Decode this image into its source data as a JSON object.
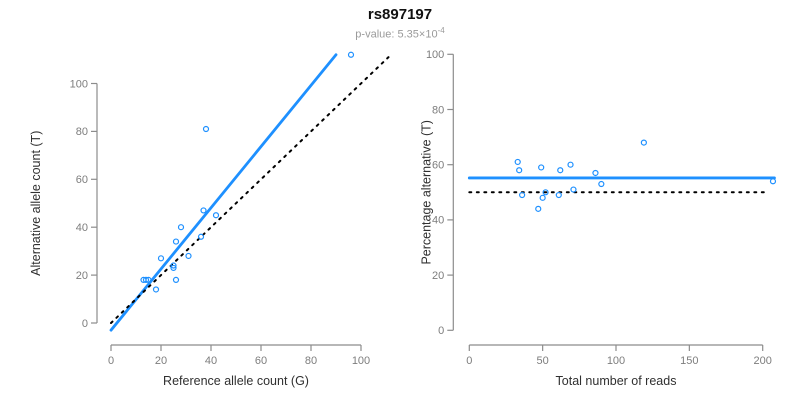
{
  "header": {
    "title": "rs897197",
    "pvalue_label": "p-value: 5.35×10",
    "pvalue_exponent": "-4"
  },
  "colors": {
    "accent_blue": "#1E90FF",
    "axis_gray": "#8c8c8c",
    "tick_label_gray": "#7d7d7d",
    "axis_title_dark": "#303030",
    "dotted_black": "#000000"
  },
  "chart_data": [
    {
      "type": "scatter",
      "name": "allele-counts-scatter",
      "xlabel": "Reference allele count (G)",
      "ylabel": "Alternative allele count (T)",
      "x_ticks": [
        0,
        20,
        40,
        60,
        80,
        100
      ],
      "y_ticks": [
        0,
        20,
        40,
        60,
        80,
        100
      ],
      "xlim": [
        0,
        112
      ],
      "ylim": [
        0,
        113
      ],
      "grid": false,
      "points": [
        [
          13,
          18
        ],
        [
          14,
          18
        ],
        [
          15,
          18
        ],
        [
          18,
          14
        ],
        [
          20,
          27
        ],
        [
          25,
          23
        ],
        [
          25,
          24
        ],
        [
          26,
          18
        ],
        [
          26,
          34
        ],
        [
          28,
          40
        ],
        [
          31,
          28
        ],
        [
          36,
          36
        ],
        [
          37,
          47
        ],
        [
          38,
          81
        ],
        [
          42,
          45
        ],
        [
          96,
          112
        ]
      ],
      "lines": [
        {
          "name": "regression-line",
          "style": "solid",
          "color": "#1E90FF",
          "points": [
            [
              0,
              -3
            ],
            [
              90,
              112
            ]
          ]
        },
        {
          "name": "identity-line",
          "style": "dotted",
          "color": "#000000",
          "points": [
            [
              0,
              0
            ],
            [
              111,
              111
            ]
          ]
        }
      ]
    },
    {
      "type": "scatter",
      "name": "percentage-vs-reads-scatter",
      "xlabel": "Total number of reads",
      "ylabel": "Percentage alternative (T)",
      "x_ticks": [
        0,
        50,
        100,
        150,
        200
      ],
      "y_ticks": [
        0,
        20,
        40,
        60,
        80,
        100
      ],
      "xlim": [
        0,
        208
      ],
      "ylim": [
        0,
        100
      ],
      "grid": false,
      "points": [
        [
          33,
          61
        ],
        [
          34,
          58
        ],
        [
          36,
          49
        ],
        [
          47,
          44
        ],
        [
          49,
          59
        ],
        [
          50,
          48
        ],
        [
          52,
          50
        ],
        [
          61,
          49
        ],
        [
          62,
          58
        ],
        [
          69,
          60
        ],
        [
          71,
          51
        ],
        [
          86,
          57
        ],
        [
          90,
          53
        ],
        [
          119,
          68
        ],
        [
          207,
          54
        ]
      ],
      "lines": [
        {
          "name": "mean-percentage-line",
          "style": "solid",
          "color": "#1E90FF",
          "points": [
            [
              0,
              55.2
            ],
            [
              208,
              55.2
            ]
          ]
        },
        {
          "name": "fifty-percent-line",
          "style": "dotted",
          "color": "#000000",
          "points": [
            [
              0,
              50
            ],
            [
              204,
              50
            ]
          ]
        }
      ]
    }
  ]
}
